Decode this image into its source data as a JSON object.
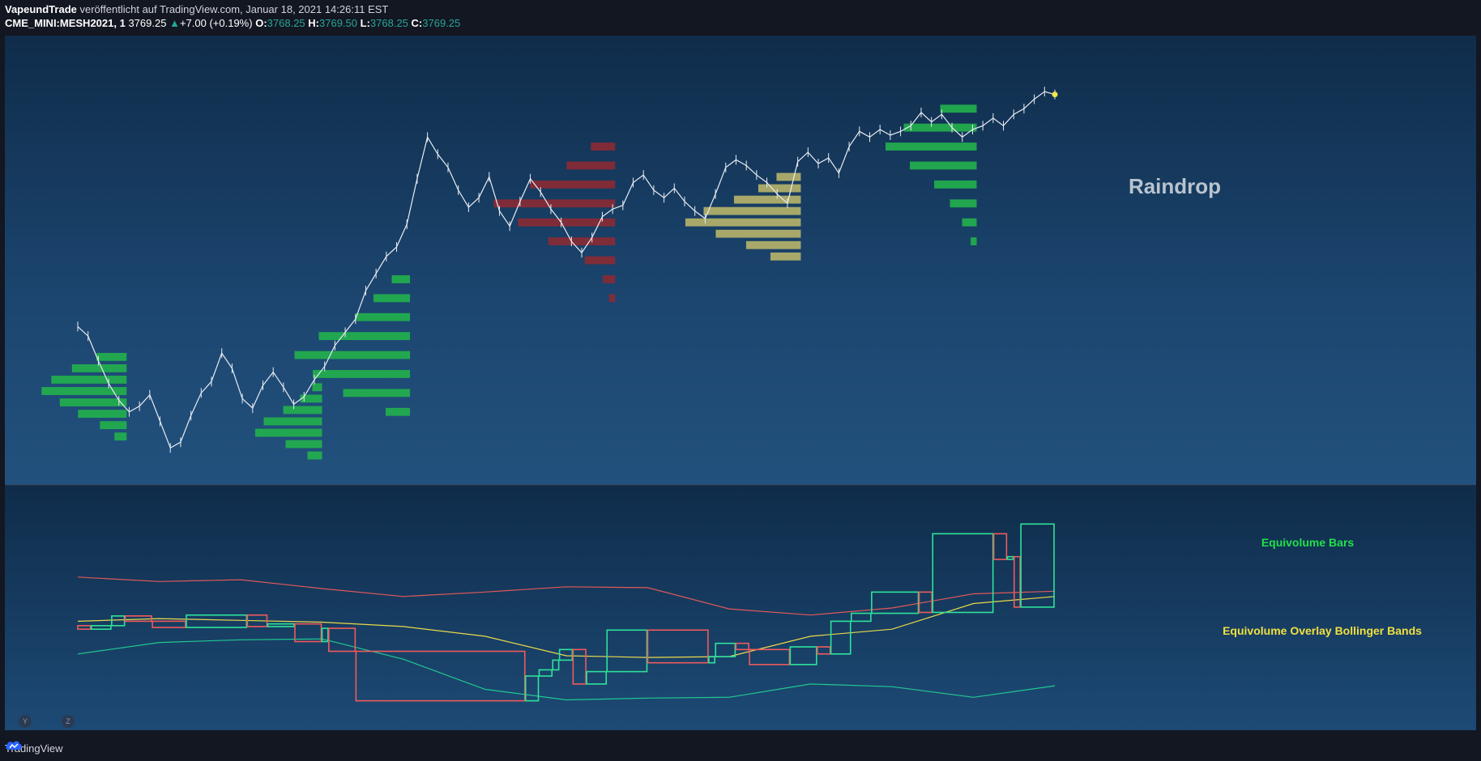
{
  "header": {
    "author": "VapeundTrade",
    "published": "veröffentlicht auf TradingView.com, Januar 18, 2021 14:26:11 EST",
    "symbol": "CME_MINI:MESH2021, 1",
    "last": "3769.25",
    "change_arrow": "▲",
    "change": "+7.00 (+0.19%)",
    "o_label": "O:",
    "o": "3768.25",
    "h_label": "H:",
    "h": "3769.50",
    "l_label": "L:",
    "l": "3768.25",
    "c_label": "C:",
    "c": "3769.25"
  },
  "pane_buttons": [
    "Y",
    "Z"
  ],
  "footer": {
    "brand": "TradingView",
    "icon": "tradingview-cloud-logo"
  },
  "colors": {
    "price_line": "#e8ecf2",
    "profile_green": "#22b14c",
    "profile_red": "#8b2a34",
    "profile_yellow": "#b7b46a",
    "box_up": "#2fe39a",
    "box_down": "#ef5b5b",
    "band_upper": "#e0585a",
    "band_mid": "#e9d94a",
    "band_lower": "#22c890",
    "text_green": "#22e04a",
    "text_yellow": "#f0e040",
    "text_gray": "#b9c3cf"
  },
  "chart_data": [
    {
      "type": "line",
      "title": "Raindrop",
      "series": [
        {
          "values": [
            3757.0,
            3756.5,
            3755.2,
            3754.0,
            3753.1,
            3752.5,
            3752.8,
            3753.4,
            3752.0,
            3750.6,
            3750.9,
            3752.3,
            3753.5,
            3754.1,
            3755.6,
            3754.8,
            3753.2,
            3752.7,
            3753.9,
            3754.6,
            3753.8,
            3752.9,
            3753.3,
            3754.2,
            3754.9,
            3756.0,
            3756.7,
            3757.4,
            3758.9,
            3759.8,
            3760.7,
            3761.2,
            3762.4,
            3764.8,
            3767.0,
            3766.1,
            3765.4,
            3764.2,
            3763.3,
            3763.8,
            3764.9,
            3763.1,
            3762.3,
            3763.6,
            3764.8,
            3764.1,
            3763.2,
            3762.5,
            3761.5,
            3760.9,
            3761.7,
            3762.8,
            3763.2,
            3763.4,
            3764.6,
            3765.0,
            3764.2,
            3763.8,
            3764.3,
            3763.6,
            3763.1,
            3762.7,
            3764.0,
            3765.4,
            3765.8,
            3765.5,
            3765.0,
            3764.6,
            3764.0,
            3763.5,
            3765.7,
            3766.2,
            3765.6,
            3765.9,
            3765.1,
            3766.5,
            3767.3,
            3767.0,
            3767.4,
            3767.1,
            3767.3,
            3767.6,
            3768.3,
            3767.8,
            3768.2,
            3767.5,
            3767.0,
            3767.4,
            3767.6,
            3768.0,
            3767.6,
            3768.2,
            3768.5,
            3769.0,
            3769.4,
            3769.25
          ]
        }
      ],
      "profiles": [
        {
          "color": "green",
          "x": 0.05,
          "bins": [
            [
              3751.2,
              0.1
            ],
            [
              3751.8,
              0.22
            ],
            [
              3752.4,
              0.4
            ],
            [
              3753.0,
              0.55
            ],
            [
              3753.6,
              0.7
            ],
            [
              3754.2,
              0.62
            ],
            [
              3754.8,
              0.45
            ],
            [
              3755.4,
              0.25
            ]
          ]
        },
        {
          "color": "green",
          "x": 0.25,
          "bins": [
            [
              3750.2,
              0.12
            ],
            [
              3750.8,
              0.3
            ],
            [
              3751.4,
              0.55
            ],
            [
              3752.0,
              0.48
            ],
            [
              3752.6,
              0.32
            ],
            [
              3753.2,
              0.18
            ],
            [
              3753.8,
              0.08
            ]
          ]
        },
        {
          "color": "green",
          "x": 0.34,
          "bins": [
            [
              3752.5,
              0.2
            ],
            [
              3753.5,
              0.55
            ],
            [
              3754.5,
              0.8
            ],
            [
              3755.5,
              0.95
            ],
            [
              3756.5,
              0.75
            ],
            [
              3757.5,
              0.45
            ],
            [
              3758.5,
              0.3
            ],
            [
              3759.5,
              0.15
            ]
          ]
        },
        {
          "color": "red",
          "x": 0.55,
          "bins": [
            [
              3758.5,
              0.05
            ],
            [
              3759.5,
              0.1
            ],
            [
              3760.5,
              0.25
            ],
            [
              3761.5,
              0.55
            ],
            [
              3762.5,
              0.8
            ],
            [
              3763.5,
              1.0
            ],
            [
              3764.5,
              0.7
            ],
            [
              3765.5,
              0.4
            ],
            [
              3766.5,
              0.2
            ]
          ]
        },
        {
          "color": "yellow",
          "x": 0.74,
          "bins": [
            [
              3760.7,
              0.25
            ],
            [
              3761.3,
              0.45
            ],
            [
              3761.9,
              0.7
            ],
            [
              3762.5,
              0.95
            ],
            [
              3763.1,
              0.8
            ],
            [
              3763.7,
              0.55
            ],
            [
              3764.3,
              0.35
            ],
            [
              3764.9,
              0.2
            ]
          ]
        },
        {
          "color": "green",
          "x": 0.92,
          "bins": [
            [
              3761.5,
              0.05
            ],
            [
              3762.5,
              0.12
            ],
            [
              3763.5,
              0.22
            ],
            [
              3764.5,
              0.35
            ],
            [
              3765.5,
              0.55
            ],
            [
              3766.5,
              0.75
            ],
            [
              3767.5,
              0.6
            ],
            [
              3768.5,
              0.3
            ]
          ]
        }
      ],
      "ylim": [
        3749.5,
        3771.5
      ]
    },
    {
      "type": "bar",
      "title": "Equivolume Bars",
      "subtitle": "Equivolume Overlay Bollinger Bands",
      "bars": [
        {
          "o": 3754.0,
          "c": 3753.6,
          "v": 2
        },
        {
          "o": 3753.6,
          "c": 3754.0,
          "v": 3
        },
        {
          "o": 3754.0,
          "c": 3755.1,
          "v": 2
        },
        {
          "o": 3755.1,
          "c": 3754.5,
          "v": 4
        },
        {
          "o": 3754.5,
          "c": 3753.8,
          "v": 5
        },
        {
          "o": 3753.8,
          "c": 3755.2,
          "v": 9
        },
        {
          "o": 3755.2,
          "c": 3753.9,
          "v": 3
        },
        {
          "o": 3753.9,
          "c": 3754.2,
          "v": 4
        },
        {
          "o": 3754.2,
          "c": 3752.2,
          "v": 4
        },
        {
          "o": 3752.2,
          "c": 3753.7,
          "v": 1
        },
        {
          "o": 3753.7,
          "c": 3751.1,
          "v": 4
        },
        {
          "o": 3751.1,
          "c": 3745.5,
          "v": 25
        },
        {
          "o": 3745.5,
          "c": 3748.3,
          "v": 2
        },
        {
          "o": 3748.3,
          "c": 3749.0,
          "v": 2
        },
        {
          "o": 3749.0,
          "c": 3750.1,
          "v": 1
        },
        {
          "o": 3750.1,
          "c": 3751.3,
          "v": 2
        },
        {
          "o": 3751.3,
          "c": 3747.4,
          "v": 2
        },
        {
          "o": 3747.4,
          "c": 3748.8,
          "v": 3
        },
        {
          "o": 3748.8,
          "c": 3753.5,
          "v": 6
        },
        {
          "o": 3753.5,
          "c": 3749.8,
          "v": 9
        },
        {
          "o": 3749.8,
          "c": 3750.5,
          "v": 1
        },
        {
          "o": 3750.5,
          "c": 3752.0,
          "v": 3
        },
        {
          "o": 3752.0,
          "c": 3751.3,
          "v": 2
        },
        {
          "o": 3751.3,
          "c": 3749.6,
          "v": 6
        },
        {
          "o": 3749.6,
          "c": 3751.6,
          "v": 4
        },
        {
          "o": 3751.6,
          "c": 3750.8,
          "v": 2
        },
        {
          "o": 3750.8,
          "c": 3754.5,
          "v": 3
        },
        {
          "o": 3754.5,
          "c": 3755.4,
          "v": 3
        },
        {
          "o": 3755.4,
          "c": 3757.8,
          "v": 7
        },
        {
          "o": 3757.8,
          "c": 3755.5,
          "v": 2
        },
        {
          "o": 3755.5,
          "c": 3764.4,
          "v": 9
        },
        {
          "o": 3764.4,
          "c": 3761.5,
          "v": 2
        },
        {
          "o": 3761.5,
          "c": 3761.8,
          "v": 1
        },
        {
          "o": 3761.8,
          "c": 3756.1,
          "v": 1
        },
        {
          "o": 3756.1,
          "c": 3765.5,
          "v": 5
        }
      ],
      "bollinger": {
        "upper": [
          3759.5,
          3759.0,
          3759.2,
          3758.2,
          3757.3,
          3757.8,
          3758.4,
          3758.3,
          3755.9,
          3755.2,
          3756.0,
          3757.6,
          3757.9
        ],
        "middle": [
          3754.5,
          3754.8,
          3754.6,
          3754.4,
          3753.9,
          3752.8,
          3750.6,
          3750.4,
          3750.5,
          3752.8,
          3753.6,
          3756.5,
          3757.3
        ],
        "lower": [
          3750.8,
          3752.1,
          3752.4,
          3752.5,
          3750.2,
          3746.8,
          3745.6,
          3745.8,
          3745.9,
          3747.4,
          3747.1,
          3745.9,
          3747.2
        ]
      },
      "ylim": [
        3744.0,
        3768.0
      ]
    }
  ]
}
